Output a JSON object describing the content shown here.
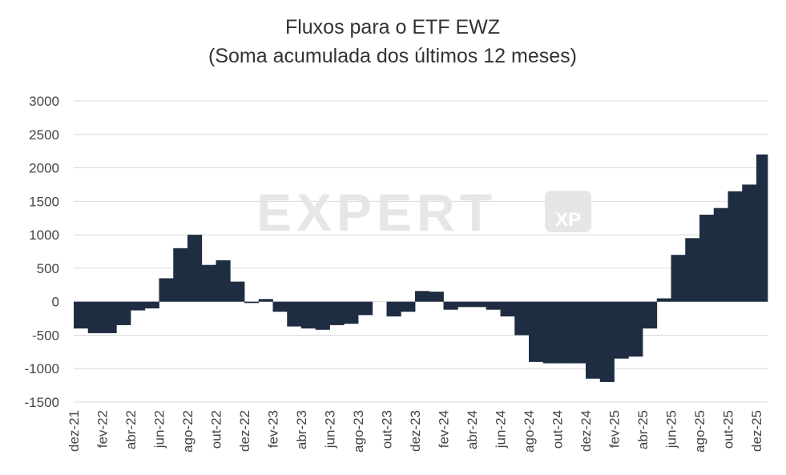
{
  "chart_data": {
    "type": "bar",
    "title": "Fluxos para o ETF EWZ",
    "subtitle": "(Soma acumulada dos últimos 12 meses)",
    "watermark": "EXPERT",
    "watermark_badge": "XP",
    "categories": [
      "dez-21",
      null,
      "fev-22",
      null,
      "abr-22",
      null,
      "jun-22",
      null,
      "ago-22",
      null,
      "out-22",
      null,
      "dez-22",
      null,
      "fev-23",
      null,
      "abr-23",
      null,
      "jun-23",
      null,
      "ago-23",
      null,
      "out-23",
      null,
      "dez-23",
      null,
      "fev-24",
      null,
      "abr-24",
      null,
      "jun-24",
      null,
      "ago-24",
      null,
      "out-24",
      null,
      "dez-24",
      null,
      "fev-25",
      null,
      "abr-25",
      null,
      "jun-25",
      null,
      "ago-25",
      null,
      "out-25",
      null,
      "dez-25"
    ],
    "values": [
      -400,
      -470,
      -470,
      -350,
      -130,
      -100,
      350,
      800,
      1000,
      550,
      620,
      300,
      -20,
      40,
      -150,
      -370,
      -400,
      -420,
      -350,
      -330,
      -200,
      0,
      -220,
      -150,
      160,
      150,
      -120,
      -80,
      -80,
      -120,
      -220,
      -500,
      -900,
      -920,
      -920,
      -920,
      -1150,
      -1200,
      -850,
      -820,
      -400,
      50,
      700,
      950,
      1300,
      1400,
      1650,
      1750,
      2200
    ],
    "color": "#1f2d42",
    "ylim": [
      -1500,
      3000
    ],
    "yticks": [
      -1500,
      -1000,
      -500,
      0,
      500,
      1000,
      1500,
      2000,
      2500,
      3000
    ],
    "grid": true
  }
}
